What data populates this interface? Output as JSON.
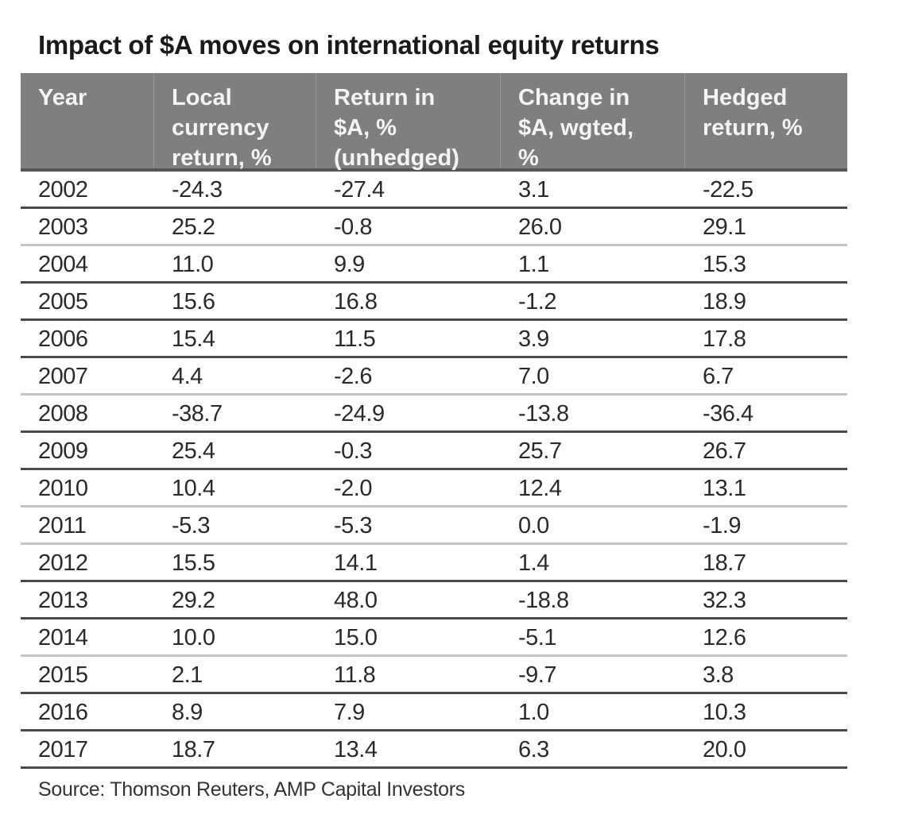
{
  "title": "Impact of $A moves on international equity returns",
  "headers": [
    "Year",
    "Local currency return, %",
    "Return in $A, % (unhedged)",
    "Change in $A, wgted, %",
    "Hedged return, %"
  ],
  "header_lines": [
    [
      "Year"
    ],
    [
      "Local",
      "currency",
      "return, %"
    ],
    [
      "Return in",
      "$A, %",
      "(unhedged)"
    ],
    [
      "Change in",
      "$A, wgted,",
      "%"
    ],
    [
      "Hedged",
      "return, %"
    ]
  ],
  "rows": [
    {
      "year": "2002",
      "local": "-24.3",
      "unhedged": "-27.4",
      "change": "3.1",
      "hedged": "-22.5",
      "line": "dark"
    },
    {
      "year": "2003",
      "local": "25.2",
      "unhedged": "-0.8",
      "change": "26.0",
      "hedged": "29.1",
      "line": "light"
    },
    {
      "year": "2004",
      "local": "11.0",
      "unhedged": "9.9",
      "change": "1.1",
      "hedged": "15.3",
      "line": "dark"
    },
    {
      "year": "2005",
      "local": "15.6",
      "unhedged": "16.8",
      "change": "-1.2",
      "hedged": "18.9",
      "line": "dark"
    },
    {
      "year": "2006",
      "local": "15.4",
      "unhedged": "11.5",
      "change": "3.9",
      "hedged": "17.8",
      "line": "dark"
    },
    {
      "year": "2007",
      "local": "4.4",
      "unhedged": "-2.6",
      "change": "7.0",
      "hedged": "6.7",
      "line": "light"
    },
    {
      "year": "2008",
      "local": "-38.7",
      "unhedged": "-24.9",
      "change": "-13.8",
      "hedged": "-36.4",
      "line": "dark"
    },
    {
      "year": "2009",
      "local": "25.4",
      "unhedged": "-0.3",
      "change": "25.7",
      "hedged": "26.7",
      "line": "dark"
    },
    {
      "year": "2010",
      "local": "10.4",
      "unhedged": "-2.0",
      "change": "12.4",
      "hedged": "13.1",
      "line": "light"
    },
    {
      "year": "2011",
      "local": "-5.3",
      "unhedged": "-5.3",
      "change": "0.0",
      "hedged": "-1.9",
      "line": "light"
    },
    {
      "year": "2012",
      "local": "15.5",
      "unhedged": "14.1",
      "change": "1.4",
      "hedged": "18.7",
      "line": "dark"
    },
    {
      "year": "2013",
      "local": "29.2",
      "unhedged": "48.0",
      "change": "-18.8",
      "hedged": "32.3",
      "line": "dark"
    },
    {
      "year": "2014",
      "local": "10.0",
      "unhedged": "15.0",
      "change": "-5.1",
      "hedged": "12.6",
      "line": "light"
    },
    {
      "year": "2015",
      "local": "2.1",
      "unhedged": "11.8",
      "change": "-9.7",
      "hedged": "3.8",
      "line": "dark"
    },
    {
      "year": "2016",
      "local": "8.9",
      "unhedged": "7.9",
      "change": "1.0",
      "hedged": "10.3",
      "line": "dark"
    },
    {
      "year": "2017",
      "local": "18.7",
      "unhedged": "13.4",
      "change": "6.3",
      "hedged": "20.0",
      "line": "dark"
    }
  ],
  "source": "Source: Thomson Reuters, AMP Capital Investors",
  "colors": {
    "header_bg": "#7f7f7f",
    "header_text": "#f4f4f4",
    "dark_rule": "#4a4a4a",
    "light_rule": "#c4c4c4"
  }
}
